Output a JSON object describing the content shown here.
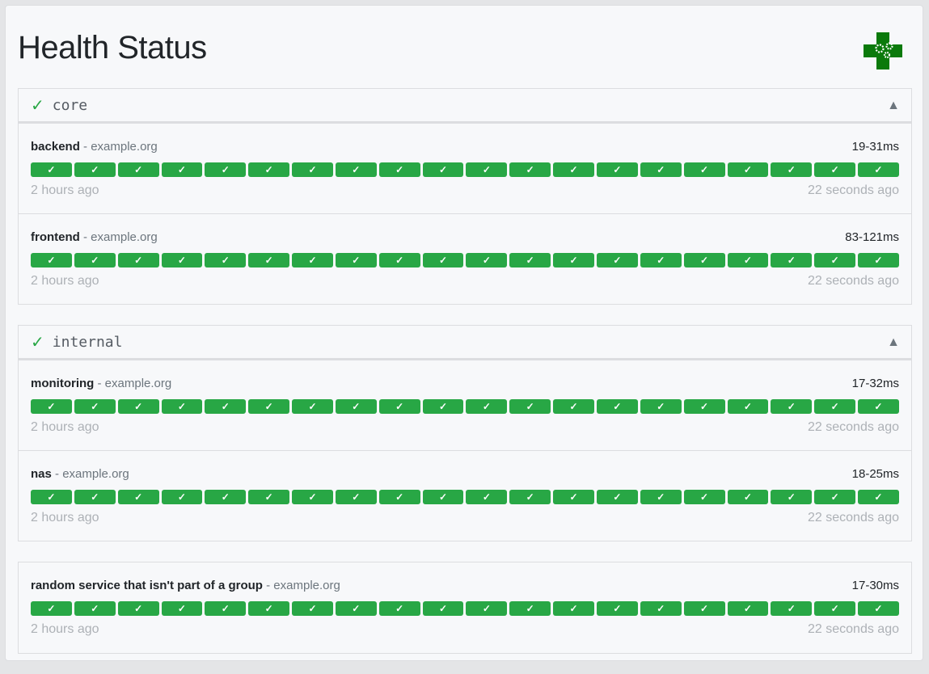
{
  "title": "Health Status",
  "logo": "health-gears-logo",
  "colors": {
    "success": "#28a745",
    "logo": "#0b7a0b"
  },
  "groups": [
    {
      "name": "core",
      "status_icon": "check-icon",
      "toggle_icon": "triangle-up-icon",
      "services": [
        {
          "name": "backend",
          "host": "example.org",
          "response": "19-31ms",
          "results": 20,
          "oldest": "2 hours ago",
          "newest": "22 seconds ago"
        },
        {
          "name": "frontend",
          "host": "example.org",
          "response": "83-121ms",
          "results": 20,
          "oldest": "2 hours ago",
          "newest": "22 seconds ago"
        }
      ]
    },
    {
      "name": "internal",
      "status_icon": "check-icon",
      "toggle_icon": "triangle-up-icon",
      "services": [
        {
          "name": "monitoring",
          "host": "example.org",
          "response": "17-32ms",
          "results": 20,
          "oldest": "2 hours ago",
          "newest": "22 seconds ago"
        },
        {
          "name": "nas",
          "host": "example.org",
          "response": "18-25ms",
          "results": 20,
          "oldest": "2 hours ago",
          "newest": "22 seconds ago"
        }
      ]
    },
    {
      "name": "",
      "services": [
        {
          "name": "random service that isn't part of a group",
          "host": "example.org",
          "response": "17-30ms",
          "results": 20,
          "oldest": "2 hours ago",
          "newest": "22 seconds ago"
        }
      ]
    }
  ],
  "glyphs": {
    "check": "✓",
    "toggle": "▲",
    "separator": " - "
  }
}
